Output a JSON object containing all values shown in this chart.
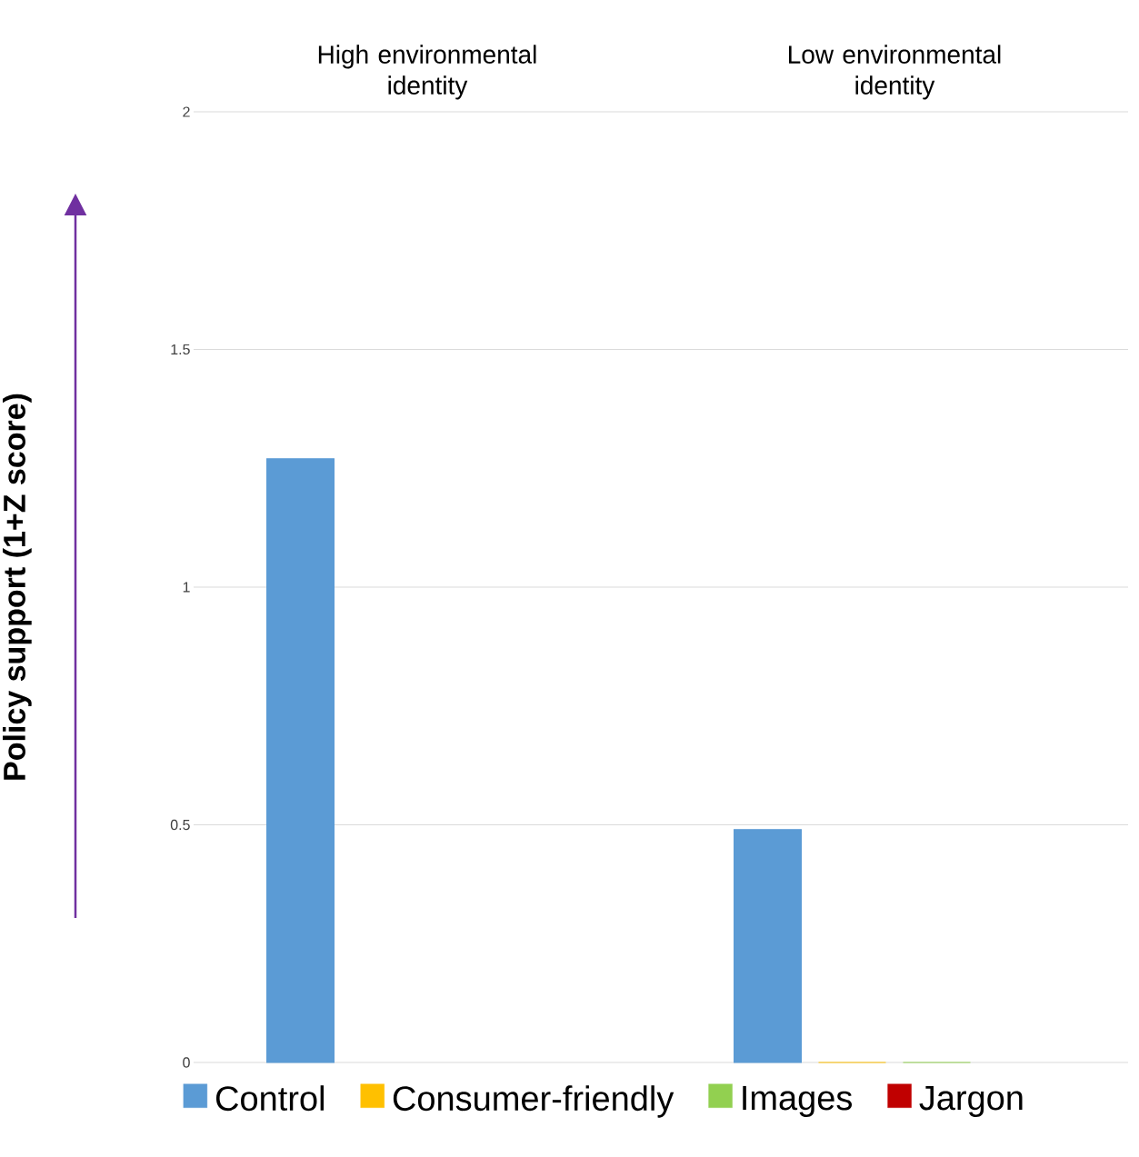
{
  "chart_data": {
    "type": "bar",
    "categories": [
      "High environmental identity",
      "Low environmental identity"
    ],
    "ylabel": "Policy support (1+Z score)",
    "series": [
      {
        "name": "Control",
        "color": "#5b9bd5",
        "values": [
          1.27,
          0.49
        ]
      },
      {
        "name": "Consumer-friendly",
        "color": "#ffc000",
        "values": [
          null,
          0
        ]
      },
      {
        "name": "Images",
        "color": "#92d050",
        "values": [
          null,
          0
        ]
      },
      {
        "name": "Jargon",
        "color": "#c00000",
        "values": [
          null,
          null
        ]
      }
    ],
    "ylim": [
      0,
      2
    ],
    "yticks": [
      0,
      0.5,
      1,
      1.5,
      2
    ],
    "grid": "y",
    "legend": "bottom"
  }
}
